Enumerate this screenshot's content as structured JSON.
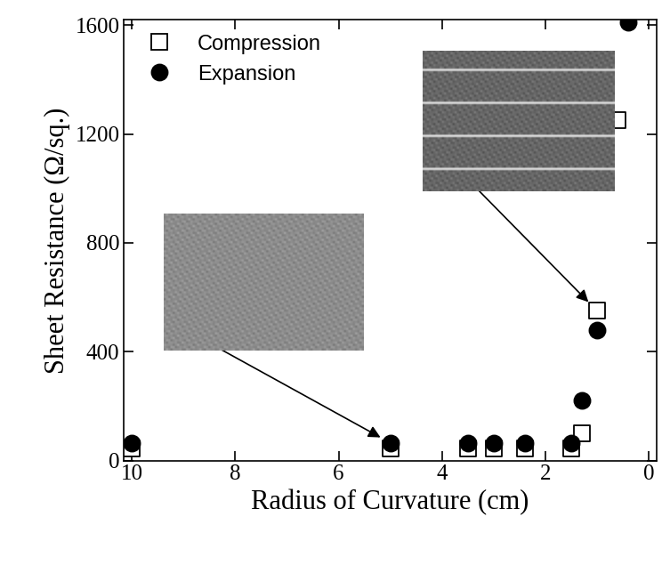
{
  "chart_data": {
    "type": "scatter",
    "x_label": "Radius of Curvature (cm)",
    "y_label": "Sheet Resistance (Ω/sq.)",
    "series": [
      {
        "name": "Compression",
        "color": "#000000",
        "marker": "open_square",
        "x": [
          10,
          5,
          3.5,
          3,
          2.4,
          1.5,
          1.3,
          1.0,
          0.6
        ],
        "values": [
          45,
          45,
          45,
          45,
          45,
          45,
          100,
          550,
          1250
        ]
      },
      {
        "name": "Expansion",
        "color": "#000000",
        "marker": "filled_circle",
        "x": [
          10,
          5,
          3.5,
          3,
          2.4,
          1.5,
          1.3,
          1.0,
          0.4
        ],
        "values": [
          65,
          65,
          65,
          65,
          65,
          65,
          220,
          480,
          1610
        ]
      }
    ],
    "xlim": [
      10.15,
      -0.15
    ],
    "xticks": [
      10,
      8,
      6,
      4,
      2,
      0
    ],
    "ylim": [
      0,
      1620
    ],
    "yticks": [
      0,
      400,
      800,
      1200,
      1600
    ],
    "legend": "upper left",
    "grid": false
  }
}
